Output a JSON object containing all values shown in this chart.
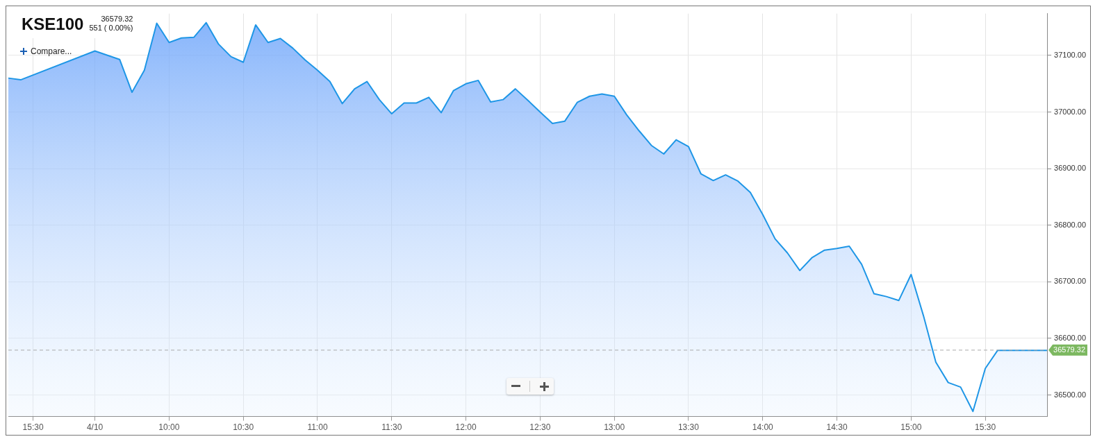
{
  "chart_data": {
    "type": "area",
    "title": "KSE100",
    "annotations": [
      "36579.32",
      "551 ( 0.00%)",
      "Compare..."
    ],
    "categories": [
      null,
      null,
      "15:30",
      null,
      null,
      null,
      null,
      "4/10",
      null,
      null,
      null,
      null,
      null,
      "10:00",
      null,
      null,
      null,
      null,
      null,
      "10:30",
      null,
      null,
      null,
      null,
      null,
      "11:00",
      null,
      null,
      null,
      null,
      null,
      "11:30",
      null,
      null,
      null,
      null,
      null,
      "12:00",
      null,
      null,
      null,
      null,
      null,
      "12:30",
      null,
      null,
      null,
      null,
      null,
      "13:00",
      null,
      null,
      null,
      null,
      null,
      "13:30",
      null,
      null,
      null,
      null,
      null,
      "14:00",
      null,
      null,
      null,
      null,
      null,
      "14:30",
      null,
      null,
      null,
      null,
      null,
      "15:00",
      null,
      null,
      null,
      null,
      null,
      "15:30",
      null,
      null,
      null,
      null,
      null
    ],
    "series": [
      {
        "color": "#1e96e6",
        "values": [
          37060,
          37057,
          null,
          null,
          null,
          null,
          null,
          37108,
          null,
          37093,
          37035,
          37074,
          37157,
          37123,
          37131,
          37132,
          37158,
          37120,
          37098,
          37088,
          37154,
          37123,
          37130,
          37113,
          37092,
          37074,
          37054,
          37015,
          37041,
          37054,
          37022,
          36997,
          37016,
          37016,
          37026,
          36999,
          37038,
          37050,
          37056,
          37018,
          37022,
          37041,
          37021,
          37000,
          36980,
          36984,
          37017,
          37028,
          37032,
          37028,
          36995,
          36967,
          36941,
          36926,
          36951,
          36939,
          36891,
          36879,
          36889,
          36878,
          36858,
          36819,
          36776,
          36751,
          36720,
          36743,
          36756,
          36759,
          36763,
          36731,
          36679,
          36674,
          36667,
          36713,
          36640,
          36558,
          36522,
          36514,
          36471,
          36547,
          36579,
          36579,
          36579,
          36579,
          36579
        ]
      }
    ],
    "ylim": [
      36462,
      37174
    ],
    "yticks": [
      {
        "value": 36500,
        "label": "36500.00"
      },
      {
        "value": 36600,
        "label": "36600.00"
      },
      {
        "value": 36700,
        "label": "36700.00"
      },
      {
        "value": 36800,
        "label": "36800.00"
      },
      {
        "value": 36900,
        "label": "36900.00"
      },
      {
        "value": 37000,
        "label": "37000.00"
      },
      {
        "value": 37100,
        "label": "37100.00"
      }
    ],
    "grid": true,
    "ref_lines": [
      {
        "axis": "y",
        "value": 36579.32,
        "label": "36579.32",
        "color": "#aaaaaa",
        "line_style": "dashed"
      }
    ]
  }
}
